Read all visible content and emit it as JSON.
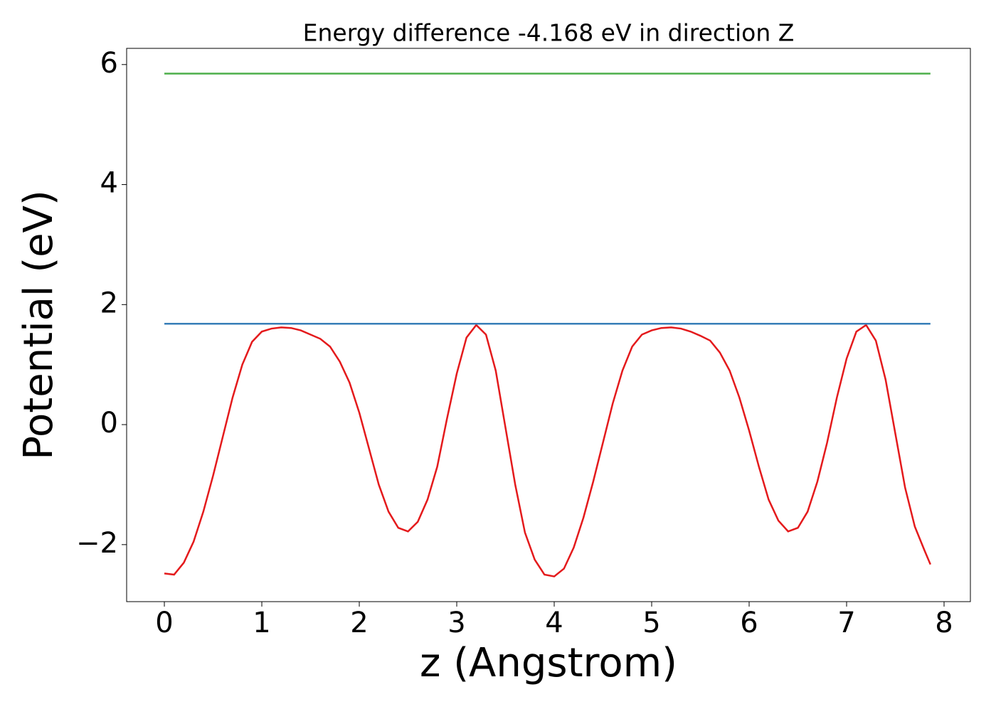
{
  "chart_data": {
    "type": "line",
    "title": "Energy difference -4.168 eV in direction Z",
    "xlabel": "z (Angstrom)",
    "ylabel": "Potential (eV)",
    "xlim": [
      -0.387,
      8.27
    ],
    "ylim": [
      -2.95,
      6.27
    ],
    "xticks": [
      0,
      1,
      2,
      3,
      4,
      5,
      6,
      7,
      8
    ],
    "yticks": [
      {
        "value": -2,
        "label": "−2"
      },
      0,
      2,
      4,
      6
    ],
    "series": [
      {
        "color": "#e41a1c",
        "x": [
          0,
          0.1,
          0.2,
          0.3,
          0.4,
          0.5,
          0.6,
          0.7,
          0.8,
          0.9,
          1.0,
          1.1,
          1.2,
          1.3,
          1.4,
          1.5,
          1.6,
          1.7,
          1.8,
          1.9,
          2.0,
          2.1,
          2.2,
          2.3,
          2.4,
          2.5,
          2.6,
          2.7,
          2.8,
          2.9,
          3.0,
          3.1,
          3.2,
          3.3,
          3.4,
          3.5,
          3.6,
          3.7,
          3.8,
          3.9,
          4.0,
          4.1,
          4.2,
          4.3,
          4.4,
          4.5,
          4.6,
          4.7,
          4.8,
          4.9,
          5.0,
          5.1,
          5.2,
          5.3,
          5.4,
          5.5,
          5.6,
          5.7,
          5.8,
          5.9,
          6.0,
          6.1,
          6.2,
          6.3,
          6.4,
          6.5,
          6.6,
          6.7,
          6.8,
          6.9,
          7.0,
          7.1,
          7.2,
          7.3,
          7.4,
          7.5,
          7.6,
          7.7,
          7.8,
          7.86
        ],
        "values": [
          -2.48,
          -2.5,
          -2.3,
          -1.95,
          -1.45,
          -0.85,
          -0.2,
          0.45,
          1.0,
          1.38,
          1.55,
          1.6,
          1.62,
          1.61,
          1.57,
          1.5,
          1.43,
          1.3,
          1.05,
          0.7,
          0.2,
          -0.4,
          -1.0,
          -1.45,
          -1.72,
          -1.78,
          -1.62,
          -1.25,
          -0.7,
          0.1,
          0.85,
          1.45,
          1.66,
          1.5,
          0.9,
          -0.05,
          -1.0,
          -1.8,
          -2.25,
          -2.5,
          -2.53,
          -2.4,
          -2.05,
          -1.55,
          -0.95,
          -0.3,
          0.35,
          0.9,
          1.3,
          1.5,
          1.57,
          1.61,
          1.62,
          1.6,
          1.55,
          1.48,
          1.4,
          1.2,
          0.9,
          0.45,
          -0.1,
          -0.7,
          -1.25,
          -1.6,
          -1.78,
          -1.72,
          -1.45,
          -0.95,
          -0.3,
          0.45,
          1.1,
          1.55,
          1.66,
          1.4,
          0.75,
          -0.15,
          -1.05,
          -1.7,
          -2.1,
          -2.33
        ]
      },
      {
        "color": "#377eb8",
        "x": [
          0,
          7.86
        ],
        "values": [
          1.68,
          1.68
        ]
      },
      {
        "color": "#4daf4a",
        "x": [
          0,
          7.86
        ],
        "values": [
          5.85,
          5.85
        ]
      }
    ]
  }
}
